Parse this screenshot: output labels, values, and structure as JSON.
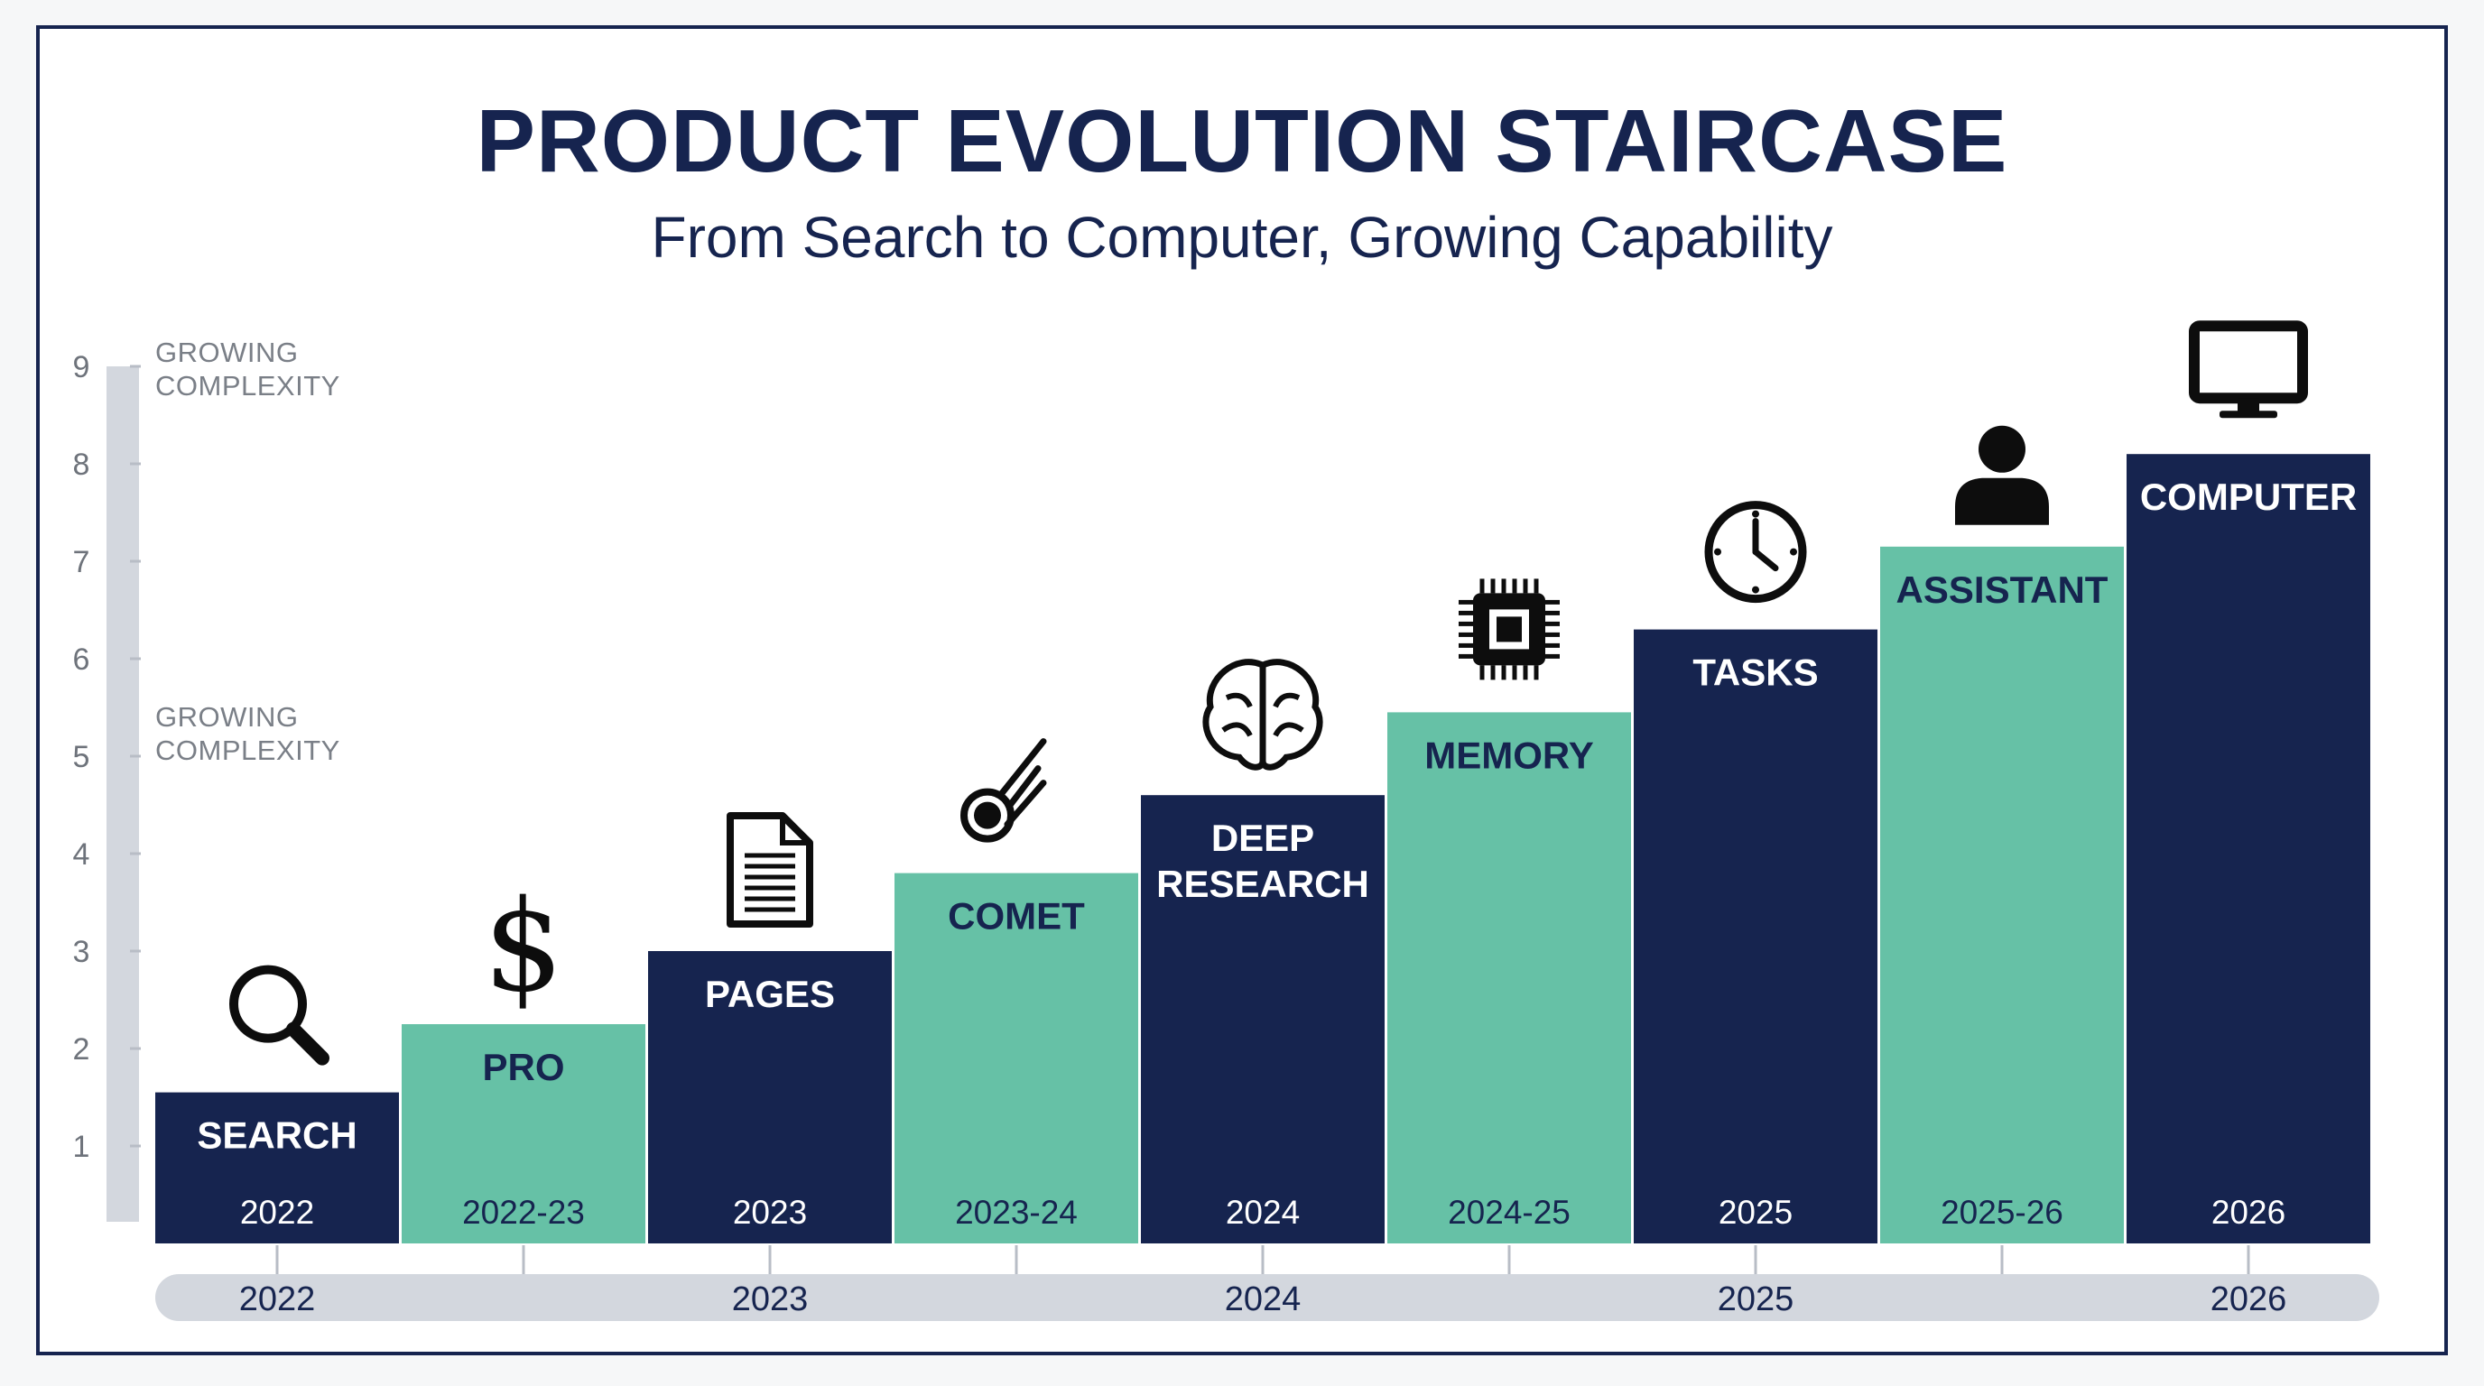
{
  "title": "PRODUCT EVOLUTION STAIRCASE",
  "subtitle": "From Search to Computer, Growing Capability",
  "side_notes": [
    {
      "line1": "GROWING",
      "line2": "COMPLEXITY"
    },
    {
      "line1": "GROWING",
      "line2": "COMPLEXITY"
    }
  ],
  "colors": {
    "navy": "#16244f",
    "teal": "#66c1a6",
    "axis": "#d3d7de",
    "text_dark": "#16244f",
    "white": "#ffffff"
  },
  "chart_data": {
    "type": "bar",
    "ylim": [
      0,
      9
    ],
    "yticks": [
      1,
      2,
      3,
      4,
      5,
      6,
      7,
      8,
      9
    ],
    "bars": [
      {
        "label": [
          "SEARCH"
        ],
        "period": "2022",
        "value": 1.55,
        "color": "navy",
        "icon": "search-icon"
      },
      {
        "label": [
          "PRO"
        ],
        "period": "2022-23",
        "value": 2.25,
        "color": "teal",
        "icon": "dollar-icon"
      },
      {
        "label": [
          "PAGES"
        ],
        "period": "2023",
        "value": 3.0,
        "color": "navy",
        "icon": "document-icon"
      },
      {
        "label": [
          "COMET"
        ],
        "period": "2023-24",
        "value": 3.8,
        "color": "teal",
        "icon": "comet-icon"
      },
      {
        "label": [
          "DEEP",
          "RESEARCH"
        ],
        "period": "2024",
        "value": 4.6,
        "color": "navy",
        "icon": "brain-icon"
      },
      {
        "label": [
          "MEMORY"
        ],
        "period": "2024-25",
        "value": 5.45,
        "color": "teal",
        "icon": "chip-icon"
      },
      {
        "label": [
          "TASKS"
        ],
        "period": "2025",
        "value": 6.3,
        "color": "navy",
        "icon": "clock-icon"
      },
      {
        "label": [
          "ASSISTANT"
        ],
        "period": "2025-26",
        "value": 7.15,
        "color": "teal",
        "icon": "person-icon"
      },
      {
        "label": [
          "COMPUTER"
        ],
        "period": "2026",
        "value": 8.1,
        "color": "navy",
        "icon": "monitor-icon"
      }
    ],
    "timeline": [
      {
        "label": "2022",
        "at_bar": 0
      },
      {
        "label": "2023",
        "at_bar": 2
      },
      {
        "label": "2024",
        "at_bar": 4
      },
      {
        "label": "2025",
        "at_bar": 6
      },
      {
        "label": "2026",
        "at_bar": 8
      }
    ]
  }
}
